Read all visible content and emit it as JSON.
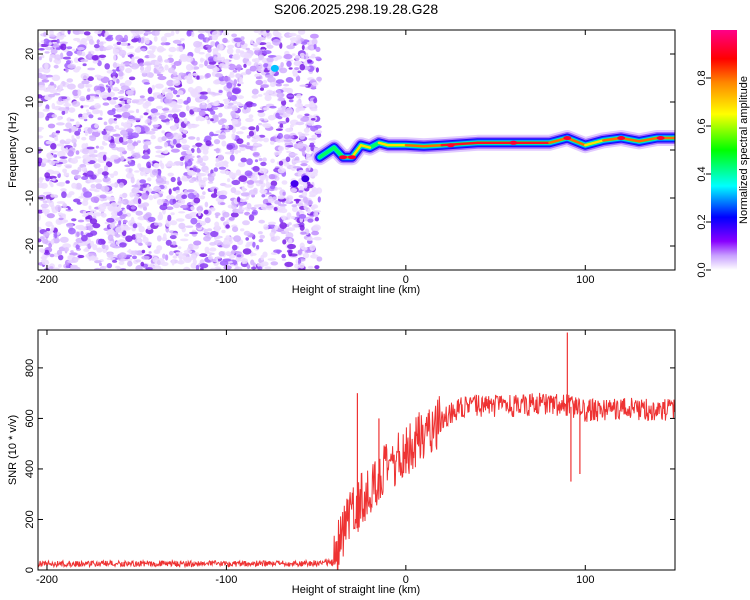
{
  "title": "S206.2025.298.19.28.G28",
  "chart_data": [
    {
      "type": "heatmap",
      "xlabel": "Height of straight line (km)",
      "ylabel": "Frequency (Hz)",
      "xlim": [
        -205,
        150
      ],
      "ylim": [
        -25,
        25
      ],
      "xticks": [
        -200,
        -100,
        0,
        100
      ],
      "yticks": [
        -20,
        -10,
        0,
        10,
        20
      ],
      "colorbar": {
        "label": "Normalized spectral amplitude",
        "range": [
          0,
          1
        ],
        "ticks": [
          0.0,
          0.2,
          0.4,
          0.6,
          0.8
        ],
        "colors": [
          "#ffffff",
          "#8800ff",
          "#0000ff",
          "#00ffff",
          "#00ff00",
          "#ffff00",
          "#ff8800",
          "#ff0000",
          "#ff0088"
        ]
      },
      "noise_region": {
        "x": [
          -205,
          -48
        ],
        "frequency_range": [
          -25,
          25
        ],
        "amplitude": "low (0.0-0.15)"
      },
      "signal_line": {
        "x": [
          -48,
          -40,
          -35,
          -30,
          -25,
          -20,
          -15,
          -10,
          0,
          10,
          20,
          40,
          60,
          80,
          90,
          100,
          110,
          120,
          130,
          140,
          150
        ],
        "frequency": [
          -1.5,
          0.5,
          -1.5,
          -1.5,
          1.0,
          0.5,
          1.5,
          1.0,
          1.0,
          0.8,
          1.0,
          1.5,
          1.5,
          1.5,
          2.5,
          1.0,
          2.0,
          2.5,
          1.8,
          2.5,
          2.5
        ],
        "amplitude": [
          0.3,
          0.6,
          0.9,
          0.8,
          0.8,
          0.7,
          0.8,
          0.85,
          0.9,
          0.9,
          0.95,
          0.95,
          0.95,
          0.9,
          0.9,
          0.85,
          0.9,
          0.9,
          0.9,
          0.9,
          0.9
        ]
      }
    },
    {
      "type": "line",
      "xlabel": "Height of straight line (km)",
      "ylabel": "SNR (10 * v/v)",
      "xlim": [
        -205,
        150
      ],
      "ylim": [
        0,
        950
      ],
      "xticks": [
        -200,
        -100,
        0,
        100
      ],
      "yticks": [
        0,
        200,
        400,
        600,
        800
      ],
      "color": "#ee3333",
      "series": [
        {
          "name": "SNR",
          "x": [
            -205,
            -150,
            -100,
            -60,
            -40,
            -35,
            -30,
            -25,
            -22,
            -20,
            -15,
            -10,
            -5,
            0,
            5,
            10,
            20,
            30,
            40,
            60,
            80,
            90,
            100,
            120,
            150
          ],
          "y": [
            25,
            25,
            25,
            25,
            30,
            150,
            220,
            280,
            300,
            320,
            360,
            400,
            430,
            470,
            510,
            540,
            600,
            640,
            650,
            650,
            660,
            650,
            630,
            640,
            630
          ]
        }
      ],
      "spikes": [
        {
          "x": -27,
          "y": 700
        },
        {
          "x": -15,
          "y": 600
        },
        {
          "x": 90,
          "y": 940
        },
        {
          "x": 92,
          "y": 350
        },
        {
          "x": 97,
          "y": 380
        }
      ]
    }
  ]
}
